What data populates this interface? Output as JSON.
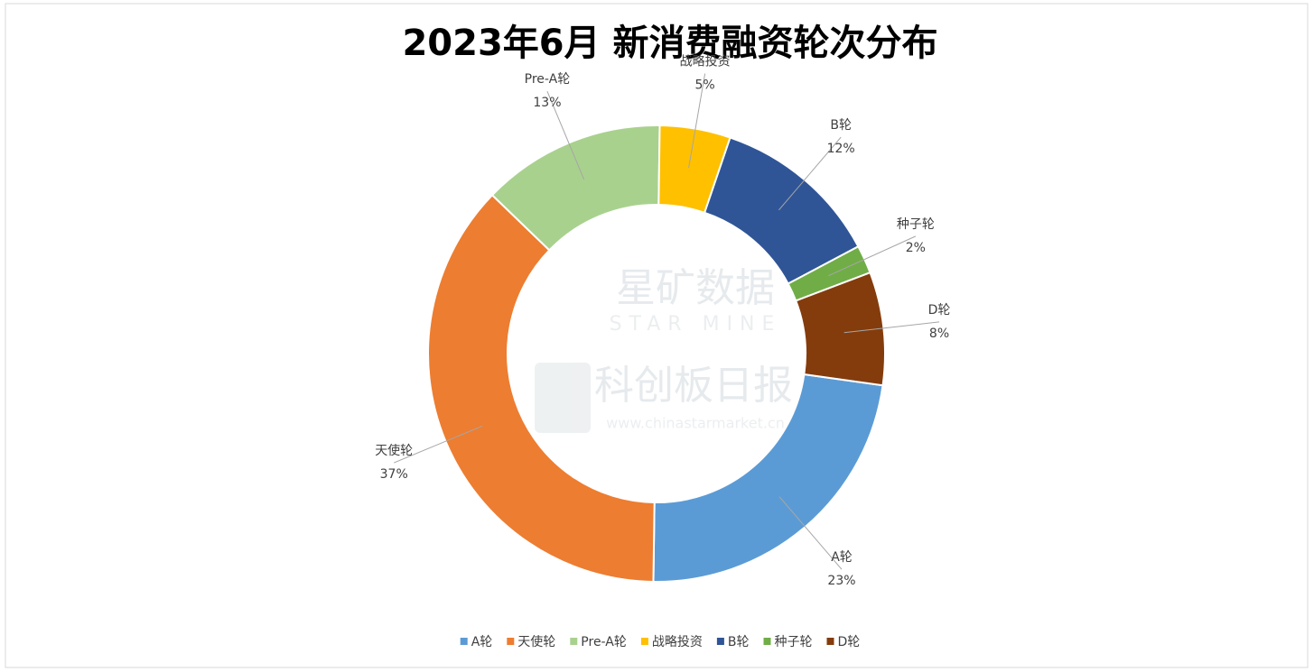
{
  "chart_data": {
    "type": "donut",
    "title": "2023年6月 新消费融资轮次分布",
    "categories": [
      "A轮",
      "天使轮",
      "Pre-A轮",
      "战略投资",
      "B轮",
      "种子轮",
      "D轮"
    ],
    "values": [
      23,
      37,
      13,
      5,
      12,
      2,
      8
    ],
    "value_labels": [
      "23%",
      "37%",
      "13%",
      "5%",
      "12%",
      "2%",
      "8%"
    ],
    "colors": [
      "#5b9bd5",
      "#ed7d31",
      "#a9d18e",
      "#ffc000",
      "#2f5597",
      "#70ad47",
      "#843c0c"
    ],
    "legend": "bottom"
  },
  "watermarks": {
    "brand1": "星矿数据",
    "brand1_en": "STAR MINE",
    "brand2": "科创板日报",
    "url": "www.chinastarmarket.cn"
  }
}
